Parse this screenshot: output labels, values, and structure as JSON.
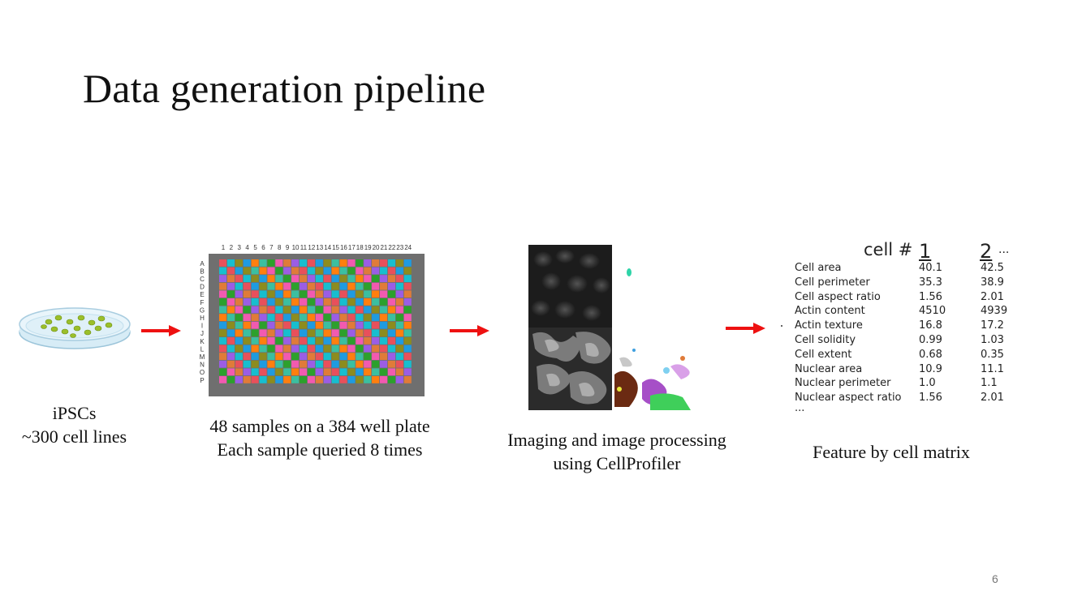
{
  "slide": {
    "title": "Data generation pipeline",
    "page_number": "6"
  },
  "steps": [
    {
      "line1": "iPSCs",
      "line2": "~300 cell lines"
    },
    {
      "line1": "48 samples on a 384 well plate",
      "line2": "Each sample queried 8 times"
    },
    {
      "line1": "Imaging and image processing",
      "line2": "using CellProfiler"
    },
    {
      "line1": "Feature by cell matrix"
    }
  ],
  "plate": {
    "columns": [
      "1",
      "2",
      "3",
      "4",
      "5",
      "6",
      "7",
      "8",
      "9",
      "10",
      "11",
      "12",
      "13",
      "14",
      "15",
      "16",
      "17",
      "18",
      "19",
      "20",
      "21",
      "22",
      "23",
      "24"
    ],
    "rows": [
      "A",
      "B",
      "C",
      "D",
      "E",
      "F",
      "G",
      "H",
      "I",
      "J",
      "K",
      "L",
      "M",
      "N",
      "O",
      "P"
    ],
    "palette": [
      "#e8505b",
      "#2ca02c",
      "#1f9be0",
      "#9b5de5",
      "#ff7f0e",
      "#17becf",
      "#f25ab0",
      "#8c8c1e",
      "#e07b39",
      "#3bbfa0"
    ]
  },
  "matrix": {
    "header_label": "cell #",
    "columns": [
      "1",
      "2"
    ],
    "more_columns": "...",
    "rows": [
      {
        "feature": "Cell area",
        "v1": "40.1",
        "v2": "42.5"
      },
      {
        "feature": "Cell perimeter",
        "v1": "35.3",
        "v2": "38.9"
      },
      {
        "feature": "Cell aspect ratio",
        "v1": "1.56",
        "v2": "2.01"
      },
      {
        "feature": "Actin content",
        "v1": "4510",
        "v2": "4939"
      },
      {
        "feature": "Actin texture",
        "v1": "16.8",
        "v2": "17.2"
      },
      {
        "feature": "Cell solidity",
        "v1": "0.99",
        "v2": "1.03"
      },
      {
        "feature": "Cell extent",
        "v1": "0.68",
        "v2": "0.35"
      },
      {
        "feature": "Nuclear area",
        "v1": "10.9",
        "v2": "11.1"
      },
      {
        "feature": "Nuclear perimeter",
        "v1": "1.0",
        "v2": "1.1"
      },
      {
        "feature": "Nuclear aspect ratio",
        "v1": "1.56",
        "v2": "2.01"
      }
    ],
    "more_rows": "..."
  },
  "colors": {
    "arrow": "#ee1111",
    "plate_frame": "#6f6f6f"
  }
}
